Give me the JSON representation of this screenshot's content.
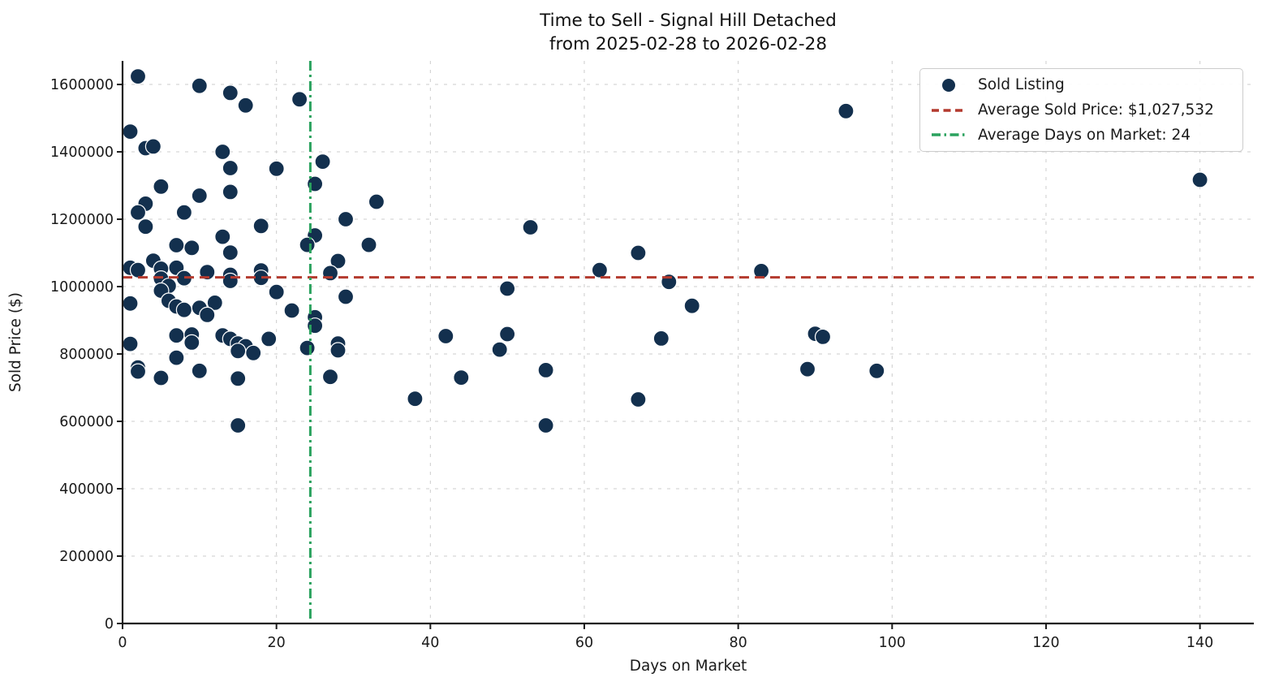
{
  "title": {
    "line1": "Time to Sell - Signal Hill Detached",
    "line2": "from 2025-02-28 to 2026-02-28"
  },
  "axes": {
    "xlabel": "Days on Market",
    "ylabel": "Sold Price ($)"
  },
  "legend": {
    "position": "upper right",
    "entries": [
      {
        "label": "Sold Listing",
        "swatch": "filled-circle",
        "color": "#13304e"
      },
      {
        "label": "Average Sold Price: $1,027,532",
        "swatch": "dashed-line",
        "color": "#b43a2e"
      },
      {
        "label": "Average Days on Market: 24",
        "swatch": "dashdot-line",
        "color": "#2aa25e"
      }
    ]
  },
  "colors": {
    "point": "#13304e",
    "avg_price_line": "#b43a2e",
    "avg_dom_line": "#2aa25e",
    "grid": "#cccccc",
    "spine": "#1a1a1a",
    "text": "#1a1a1a"
  },
  "chart_data": {
    "type": "scatter",
    "title": "Time to Sell - Signal Hill Detached from 2025-02-28 to 2026-02-28",
    "xlabel": "Days on Market",
    "ylabel": "Sold Price ($)",
    "xlim": [
      0,
      147
    ],
    "ylim": [
      0,
      1670000
    ],
    "x_ticks": [
      0,
      20,
      40,
      60,
      80,
      100,
      120,
      140
    ],
    "y_ticks": [
      0,
      200000,
      400000,
      600000,
      800000,
      1000000,
      1200000,
      1400000,
      1600000
    ],
    "grid": true,
    "legend_position": "upper right",
    "series": [
      {
        "name": "Sold Listing",
        "type": "scatter",
        "color": "#13304e",
        "points": [
          [
            2,
            1624000
          ],
          [
            10,
            1596000
          ],
          [
            14,
            1575000
          ],
          [
            16,
            1538000
          ],
          [
            23,
            1556000
          ],
          [
            94,
            1521000
          ],
          [
            1,
            1460000
          ],
          [
            3,
            1411000
          ],
          [
            4,
            1416000
          ],
          [
            13,
            1400000
          ],
          [
            26,
            1371000
          ],
          [
            14,
            1352000
          ],
          [
            20,
            1350000
          ],
          [
            140,
            1317000
          ],
          [
            25,
            1305000
          ],
          [
            5,
            1297000
          ],
          [
            14,
            1281000
          ],
          [
            10,
            1270000
          ],
          [
            3,
            1246000
          ],
          [
            33,
            1252000
          ],
          [
            2,
            1220000
          ],
          [
            8,
            1220000
          ],
          [
            29,
            1200000
          ],
          [
            3,
            1178000
          ],
          [
            18,
            1180000
          ],
          [
            53,
            1176000
          ],
          [
            13,
            1148000
          ],
          [
            25,
            1152000
          ],
          [
            24,
            1124000
          ],
          [
            32,
            1124000
          ],
          [
            7,
            1123000
          ],
          [
            9,
            1115000
          ],
          [
            14,
            1101000
          ],
          [
            67,
            1100000
          ],
          [
            28,
            1076000
          ],
          [
            4,
            1077000
          ],
          [
            5,
            1053000
          ],
          [
            7,
            1056000
          ],
          [
            1,
            1056000
          ],
          [
            2,
            1049000
          ],
          [
            18,
            1048000
          ],
          [
            11,
            1043000
          ],
          [
            27,
            1040000
          ],
          [
            62,
            1049000
          ],
          [
            83,
            1046000
          ],
          [
            14,
            1035000
          ],
          [
            8,
            1025000
          ],
          [
            5,
            1024000
          ],
          [
            18,
            1026000
          ],
          [
            14,
            1017000
          ],
          [
            71,
            1014000
          ],
          [
            6,
            1002000
          ],
          [
            5,
            988000
          ],
          [
            50,
            994000
          ],
          [
            20,
            984000
          ],
          [
            29,
            970000
          ],
          [
            6,
            958000
          ],
          [
            1,
            950000
          ],
          [
            12,
            952000
          ],
          [
            7,
            941000
          ],
          [
            8,
            931000
          ],
          [
            10,
            937000
          ],
          [
            11,
            916000
          ],
          [
            22,
            929000
          ],
          [
            25,
            909000
          ],
          [
            25,
            884000
          ],
          [
            74,
            943000
          ],
          [
            42,
            853000
          ],
          [
            7,
            855000
          ],
          [
            9,
            858000
          ],
          [
            9,
            834000
          ],
          [
            13,
            855000
          ],
          [
            14,
            845000
          ],
          [
            15,
            831000
          ],
          [
            16,
            823000
          ],
          [
            15,
            809000
          ],
          [
            17,
            803000
          ],
          [
            19,
            845000
          ],
          [
            24,
            818000
          ],
          [
            28,
            831000
          ],
          [
            28,
            811000
          ],
          [
            50,
            859000
          ],
          [
            49,
            813000
          ],
          [
            70,
            846000
          ],
          [
            90,
            860000
          ],
          [
            91,
            851000
          ],
          [
            1,
            830000
          ],
          [
            2,
            760000
          ],
          [
            2,
            748000
          ],
          [
            5,
            729000
          ],
          [
            7,
            789000
          ],
          [
            10,
            750000
          ],
          [
            15,
            727000
          ],
          [
            27,
            732000
          ],
          [
            44,
            730000
          ],
          [
            55,
            752000
          ],
          [
            89,
            755000
          ],
          [
            98,
            750000
          ],
          [
            38,
            667000
          ],
          [
            67,
            665000
          ],
          [
            15,
            588000
          ],
          [
            55,
            588000
          ]
        ]
      },
      {
        "name": "Average Sold Price: $1,027,532",
        "type": "hline",
        "value": 1027532,
        "color": "#b43a2e",
        "linestyle": "dashed"
      },
      {
        "name": "Average Days on Market: 24",
        "type": "vline",
        "value": 24.4,
        "display_value": 24,
        "color": "#2aa25e",
        "linestyle": "dashdot"
      }
    ]
  }
}
